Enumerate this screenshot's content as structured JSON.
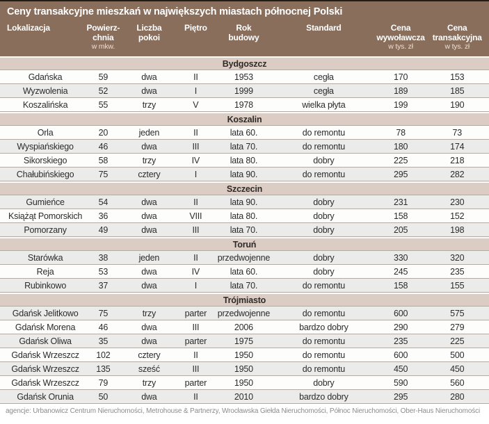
{
  "chart_data": {
    "type": "table",
    "title": "Ceny transakcyjne mieszkań w największych miastach północnej Polski",
    "columns": [
      {
        "id": "location",
        "lines": [
          "Lokalizacja"
        ],
        "sub": ""
      },
      {
        "id": "area",
        "lines": [
          "Powierz-",
          "chnia"
        ],
        "sub": "w mkw."
      },
      {
        "id": "rooms",
        "lines": [
          "Liczba",
          "pokoi"
        ],
        "sub": ""
      },
      {
        "id": "floor",
        "lines": [
          "Piętro"
        ],
        "sub": ""
      },
      {
        "id": "year-built",
        "lines": [
          "Rok",
          "budowy"
        ],
        "sub": ""
      },
      {
        "id": "standard",
        "lines": [
          "Standard"
        ],
        "sub": ""
      },
      {
        "id": "asking-price",
        "lines": [
          "Cena",
          "wywoławcza"
        ],
        "sub": "w tys. zł"
      },
      {
        "id": "transaction-price",
        "lines": [
          "Cena",
          "transakcyjna"
        ],
        "sub": "w tys. zł"
      }
    ],
    "sections": [
      {
        "name": "Bydgoszcz",
        "rows": [
          [
            "Gdańska",
            "59",
            "dwa",
            "II",
            "1953",
            "cegła",
            "170",
            "153"
          ],
          [
            "Wyzwolenia",
            "52",
            "dwa",
            "I",
            "1999",
            "cegła",
            "189",
            "185"
          ],
          [
            "Koszalińska",
            "55",
            "trzy",
            "V",
            "1978",
            "wielka płyta",
            "199",
            "190"
          ]
        ]
      },
      {
        "name": "Koszalin",
        "rows": [
          [
            "Orla",
            "20",
            "jeden",
            "II",
            "lata 60.",
            "do remontu",
            "78",
            "73"
          ],
          [
            "Wyspiańskiego",
            "46",
            "dwa",
            "III",
            "lata 70.",
            "do remontu",
            "180",
            "174"
          ],
          [
            "Sikorskiego",
            "58",
            "trzy",
            "IV",
            "lata 80.",
            "dobry",
            "225",
            "218"
          ],
          [
            "Chałubińskiego",
            "75",
            "cztery",
            "I",
            "lata 90.",
            "do remontu",
            "295",
            "282"
          ]
        ]
      },
      {
        "name": "Szczecin",
        "rows": [
          [
            "Gumieńce",
            "54",
            "dwa",
            "II",
            "lata 90.",
            "dobry",
            "231",
            "230"
          ],
          [
            "Książąt Pomorskich",
            "36",
            "dwa",
            "VIII",
            "lata 80.",
            "dobry",
            "158",
            "152"
          ],
          [
            "Pomorzany",
            "49",
            "dwa",
            "III",
            "lata 70.",
            "dobry",
            "205",
            "198"
          ]
        ]
      },
      {
        "name": "Toruń",
        "rows": [
          [
            "Starówka",
            "38",
            "jeden",
            "II",
            "przedwojenne",
            "dobry",
            "330",
            "320"
          ],
          [
            "Reja",
            "53",
            "dwa",
            "IV",
            "lata 60.",
            "dobry",
            "245",
            "235"
          ],
          [
            "Rubinkowo",
            "37",
            "dwa",
            "I",
            "lata 70.",
            "do remontu",
            "158",
            "155"
          ]
        ]
      },
      {
        "name": "Trójmiasto",
        "rows": [
          [
            "Gdańsk Jelitkowo",
            "75",
            "trzy",
            "parter",
            "przedwojenne",
            "do remontu",
            "600",
            "575"
          ],
          [
            "Gdańsk Morena",
            "46",
            "dwa",
            "III",
            "2006",
            "bardzo dobry",
            "290",
            "279"
          ],
          [
            "Gdańsk Oliwa",
            "35",
            "dwa",
            "parter",
            "1975",
            "do remontu",
            "235",
            "225"
          ],
          [
            "Gdańsk Wrzeszcz",
            "102",
            "cztery",
            "II",
            "1950",
            "do remontu",
            "600",
            "500"
          ],
          [
            "Gdańsk Wrzeszcz",
            "135",
            "sześć",
            "III",
            "1950",
            "do remontu",
            "450",
            "450"
          ],
          [
            "Gdańsk Wrzeszcz",
            "79",
            "trzy",
            "parter",
            "1950",
            "dobry",
            "590",
            "560"
          ],
          [
            "Gdańsk Orunia",
            "50",
            "dwa",
            "II",
            "2010",
            "bardzo dobry",
            "295",
            "280"
          ]
        ]
      }
    ],
    "footnote": "agencje: Urbanowicz Centrum Nieruchomości, Metrohouse & Partnerzy, Wrocławska Giełda  Nieruchomości, Północ Nieruchomości, Ober-Haus Nieruchomości",
    "layout": {
      "grid": "zebra-continuous",
      "legend_position": "none"
    },
    "colors": {
      "header_brown": "#8a6e5c",
      "section_band_tan": "#dccdc4",
      "row_gray": "#ebebe9",
      "row_white": "#fdfdfc",
      "rule_gray": "#b2aba5",
      "top_border": "#221c17",
      "footnote_gray": "#8c8c8c"
    }
  }
}
